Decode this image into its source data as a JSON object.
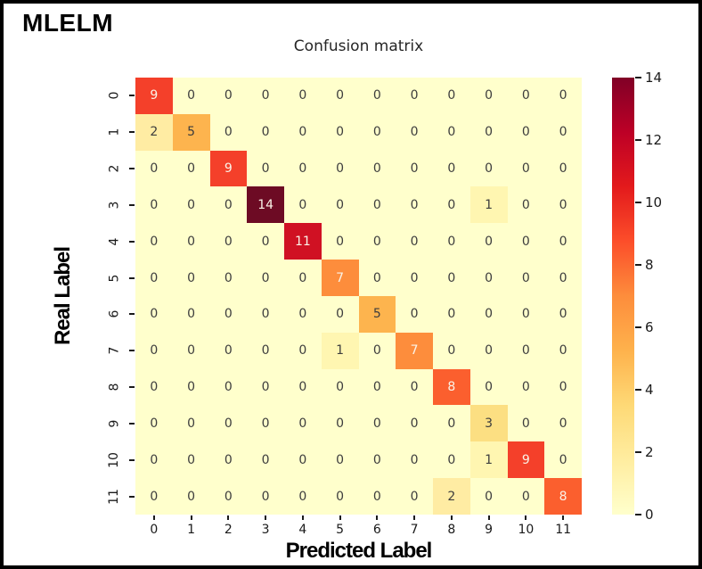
{
  "panel_label": "MLELM",
  "chart_data": {
    "type": "heatmap",
    "title": "Confusion matrix",
    "xlabel": "Predicted Label",
    "ylabel": "Real Label",
    "x_tick_labels": [
      "0",
      "1",
      "2",
      "3",
      "4",
      "5",
      "6",
      "7",
      "8",
      "9",
      "10",
      "11"
    ],
    "y_tick_labels": [
      "0",
      "1",
      "2",
      "3",
      "4",
      "5",
      "6",
      "7",
      "8",
      "9",
      "10",
      "11"
    ],
    "matrix": [
      [
        9,
        0,
        0,
        0,
        0,
        0,
        0,
        0,
        0,
        0,
        0,
        0
      ],
      [
        2,
        5,
        0,
        0,
        0,
        0,
        0,
        0,
        0,
        0,
        0,
        0
      ],
      [
        0,
        0,
        9,
        0,
        0,
        0,
        0,
        0,
        0,
        0,
        0,
        0
      ],
      [
        0,
        0,
        0,
        14,
        0,
        0,
        0,
        0,
        0,
        1,
        0,
        0
      ],
      [
        0,
        0,
        0,
        0,
        11,
        0,
        0,
        0,
        0,
        0,
        0,
        0
      ],
      [
        0,
        0,
        0,
        0,
        0,
        7,
        0,
        0,
        0,
        0,
        0,
        0
      ],
      [
        0,
        0,
        0,
        0,
        0,
        0,
        5,
        0,
        0,
        0,
        0,
        0
      ],
      [
        0,
        0,
        0,
        0,
        0,
        1,
        0,
        7,
        0,
        0,
        0,
        0
      ],
      [
        0,
        0,
        0,
        0,
        0,
        0,
        0,
        0,
        8,
        0,
        0,
        0
      ],
      [
        0,
        0,
        0,
        0,
        0,
        0,
        0,
        0,
        0,
        3,
        0,
        0
      ],
      [
        0,
        0,
        0,
        0,
        0,
        0,
        0,
        0,
        0,
        1,
        9,
        0
      ],
      [
        0,
        0,
        0,
        0,
        0,
        0,
        0,
        0,
        2,
        0,
        0,
        8
      ]
    ],
    "vmin": 0,
    "vmax": 14,
    "colorbar_ticks": [
      "0",
      "2",
      "4",
      "6",
      "8",
      "10",
      "12",
      "14"
    ],
    "colormap_name": "YlOrRd",
    "colormap_stops": [
      "#ffffcc",
      "#ffeda0",
      "#fed976",
      "#feb24c",
      "#fd8d3c",
      "#fc4e2a",
      "#e31a1c",
      "#bd0026",
      "#800026"
    ],
    "value_colors": {
      "0": "#ffffcc",
      "1": "#fff6b1",
      "2": "#ffeca3",
      "3": "#fcdf82",
      "5": "#fdb44e",
      "7": "#fd8d3c",
      "8": "#fb5f2e",
      "9": "#f4402a",
      "11": "#d01123",
      "14": "#6d0b24"
    },
    "white_text_min": 7,
    "text_color_dark": "#3d3d3d",
    "text_color_light": "#faf3e8",
    "grid": "off",
    "legend": "colorbar-right"
  }
}
